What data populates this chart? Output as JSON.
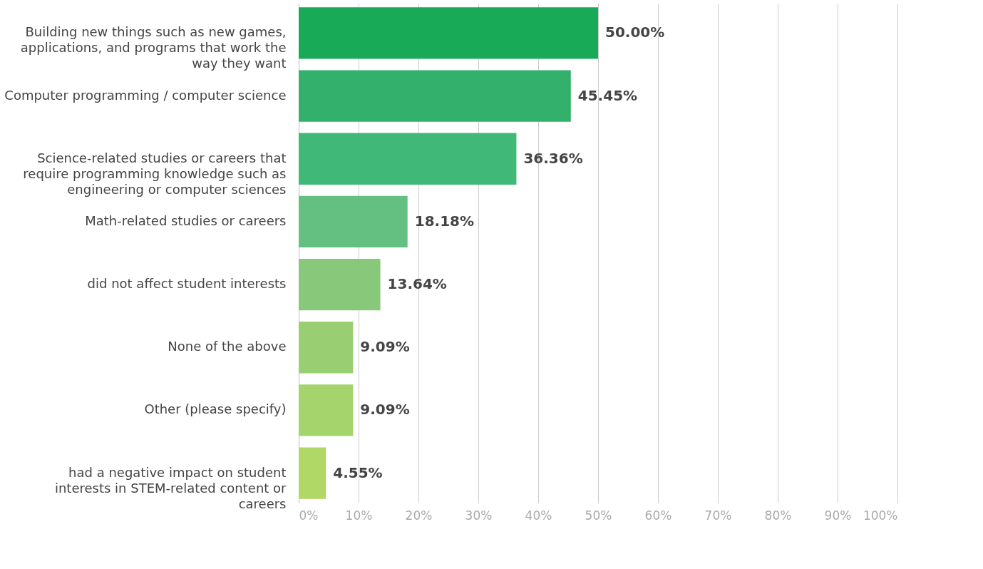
{
  "chart_data": {
    "type": "bar",
    "orientation": "horizontal",
    "categories": [
      "Building new things such as new games, applications, and programs that work the way they want",
      "Computer programming / computer science",
      "Science-related studies or careers that require programming knowledge such as engineering or computer sciences",
      "Math-related studies or careers",
      "did not affect student interests",
      "None of the above",
      "Other (please specify)",
      "had a negative impact on student interests in STEM-related content or careers"
    ],
    "values": [
      50.0,
      45.45,
      36.36,
      18.18,
      13.64,
      9.09,
      9.09,
      4.55
    ],
    "value_labels": [
      "50.00%",
      "45.45%",
      "36.36%",
      "18.18%",
      "13.64%",
      "9.09%",
      "9.09%",
      "4.55%"
    ],
    "colors": [
      "#19aa58",
      "#33b06c",
      "#3fb878",
      "#63c081",
      "#87c87a",
      "#99cf72",
      "#a5d36c",
      "#b0d866"
    ],
    "xlim": [
      0,
      100
    ],
    "xticks": [
      {
        "value": 0,
        "label": "0%"
      },
      {
        "value": 10,
        "label": "10%"
      },
      {
        "value": 20,
        "label": "20%"
      },
      {
        "value": 30,
        "label": "30%"
      },
      {
        "value": 40,
        "label": "40%"
      },
      {
        "value": 50,
        "label": "50%"
      },
      {
        "value": 60,
        "label": "60%"
      },
      {
        "value": 70,
        "label": "70%"
      },
      {
        "value": 80,
        "label": "80%"
      },
      {
        "value": 90,
        "label": "90%"
      },
      {
        "value": 100,
        "label": "100%"
      }
    ],
    "grid": "x"
  }
}
